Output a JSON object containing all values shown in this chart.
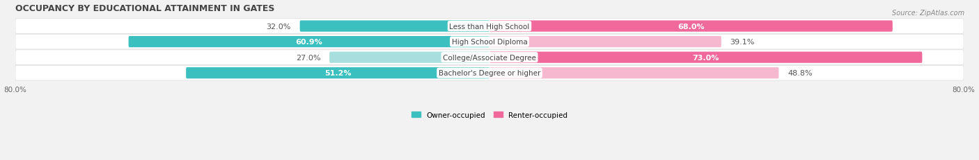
{
  "title": "OCCUPANCY BY EDUCATIONAL ATTAINMENT IN GATES",
  "source": "Source: ZipAtlas.com",
  "categories": [
    "Less than High School",
    "High School Diploma",
    "College/Associate Degree",
    "Bachelor's Degree or higher"
  ],
  "owner_values": [
    32.0,
    60.9,
    27.0,
    51.2
  ],
  "renter_values": [
    68.0,
    39.1,
    73.0,
    48.8
  ],
  "owner_color": "#3BBFBF",
  "owner_color_light": "#A8DEDE",
  "renter_color": "#F0699A",
  "renter_color_light": "#F5B8CE",
  "owner_label": "Owner-occupied",
  "renter_label": "Renter-occupied",
  "xlim_left": -80,
  "xlim_right": 80,
  "bg_color": "#f2f2f2",
  "bar_bg_color": "#e6e6e6",
  "row_bg_color": "#f8f8f8",
  "title_fontsize": 9,
  "source_fontsize": 7,
  "value_fontsize": 8,
  "cat_fontsize": 7.5,
  "bar_height": 0.72,
  "figsize": [
    14.06,
    2.32
  ],
  "dpi": 100
}
